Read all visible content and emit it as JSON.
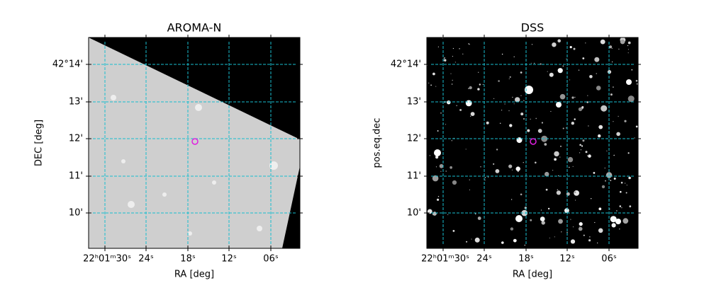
{
  "panels": [
    {
      "title": "AROMA-N",
      "xlabel": "RA [deg]",
      "ylabel": "DEC [deg]",
      "xticks": [
        "22ʰ01ᵐ30ˢ",
        "24ˢ",
        "18ˢ",
        "12ˢ",
        "06ˢ"
      ],
      "yticks": [
        "42°14'",
        "13'",
        "12'",
        "11'",
        "10'"
      ]
    },
    {
      "title": "DSS",
      "xlabel": "RA [deg]",
      "ylabel": "pos.eq.dec",
      "xticks": [
        "22ʰ01ᵐ30ˢ",
        "24ˢ",
        "18ˢ",
        "12ˢ",
        "06ˢ"
      ],
      "yticks": [
        "42°14'",
        "13'",
        "12'",
        "11'",
        "10'"
      ]
    }
  ]
}
